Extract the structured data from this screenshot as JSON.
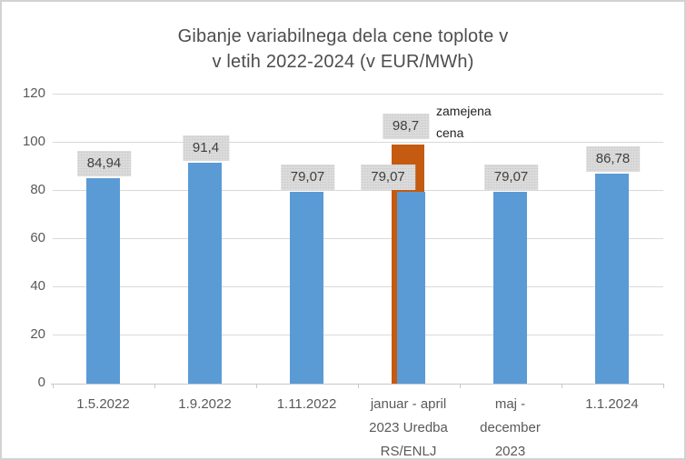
{
  "colors": {
    "bar_blue": "#5B9BD5",
    "bar_orange": "#C55A11",
    "label_box_bg": "#DBDBDB",
    "grid": "#D9D9D9",
    "axis_line": "#C8C8C8",
    "axis_text": "#595959",
    "title_text": "#4D4D4D",
    "label_text": "#3F3F3F",
    "annotation_text": "#1F1F1F",
    "figure_border": "#D2D2D2"
  },
  "chart_data": {
    "type": "bar",
    "title": "Gibanje variabilnega dela cene toplote v v letih 2022-2024 (v EUR/MWh)",
    "title_lines": [
      "Gibanje variabilnega dela cene toplote v",
      "v letih 2022-2024 (v EUR/MWh)"
    ],
    "xlabel": "",
    "ylabel": "",
    "ylim": [
      0,
      120
    ],
    "y_ticks": [
      0,
      20,
      40,
      60,
      80,
      100,
      120
    ],
    "grid": true,
    "legend": "none",
    "categories": [
      "1.5.2022",
      "1.9.2022",
      "1.11.2022",
      "januar - april 2023 Uredba RS/ENLJ",
      "maj - december 2023",
      "1.1.2024"
    ],
    "category_label_lines": [
      [
        "1.5.2022"
      ],
      [
        "1.9.2022"
      ],
      [
        "1.11.2022"
      ],
      [
        "januar - april",
        "2023 Uredba",
        "RS/ENLJ"
      ],
      [
        "maj -",
        "december",
        "2023"
      ],
      [
        "1.1.2024"
      ]
    ],
    "series": [
      {
        "id": "blue",
        "color_key": "bar_blue",
        "values": [
          84.94,
          91.4,
          79.07,
          79.07,
          79.07,
          86.78
        ],
        "labels": [
          "84,94",
          "91,4",
          "79,07",
          "79,07",
          "79,07",
          "86,78"
        ]
      },
      {
        "id": "orange",
        "color_key": "bar_orange",
        "values": [
          null,
          null,
          null,
          98.7,
          null,
          null
        ],
        "labels": [
          null,
          null,
          null,
          "98,7",
          null,
          null
        ]
      }
    ],
    "annotation": {
      "text": "zamejena cena",
      "lines": [
        "zamejena",
        "cena"
      ]
    }
  }
}
